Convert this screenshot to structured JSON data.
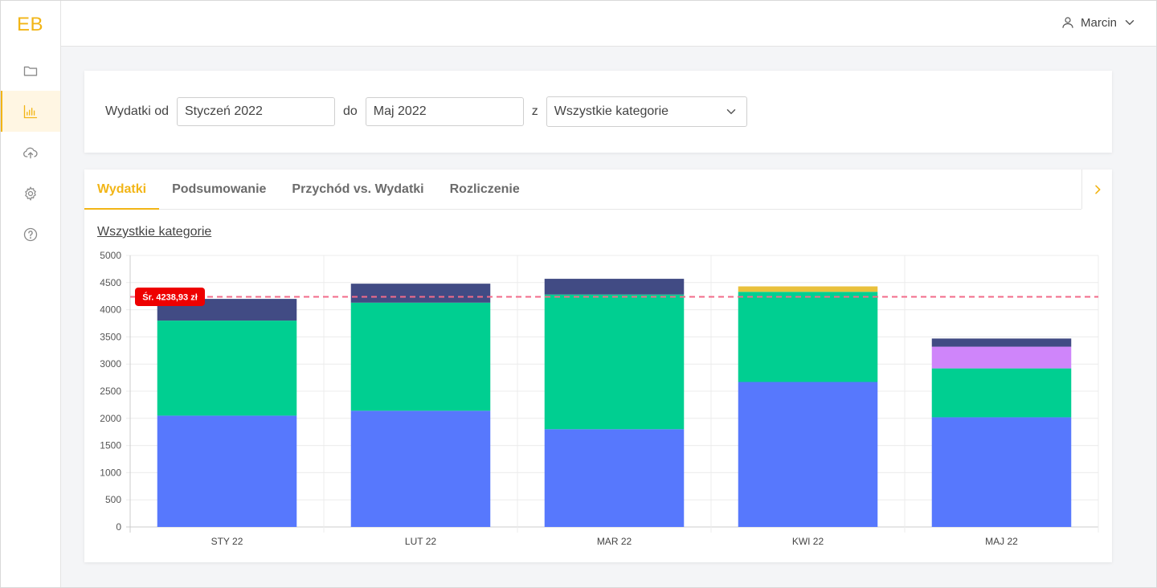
{
  "app": {
    "logo": "EB"
  },
  "sidebar": {
    "items": [
      {
        "name": "folder",
        "icon": "folder-icon",
        "active": false
      },
      {
        "name": "charts",
        "icon": "bar-chart-icon",
        "active": true
      },
      {
        "name": "upload",
        "icon": "cloud-upload-icon",
        "active": false
      },
      {
        "name": "settings",
        "icon": "gear-icon",
        "active": false
      },
      {
        "name": "help",
        "icon": "help-circle-icon",
        "active": false
      }
    ]
  },
  "header": {
    "user_name": "Marcin",
    "user_icon": "user-icon",
    "chevron_icon": "chevron-down-icon"
  },
  "filters": {
    "label_from": "Wydatki od",
    "from_value": "Styczeń 2022",
    "label_to": "do",
    "to_value": "Maj 2022",
    "label_with": "z",
    "category_value": "Wszystkie kategorie"
  },
  "tabs": [
    {
      "label": "Wydatki",
      "active": true
    },
    {
      "label": "Podsumowanie",
      "active": false
    },
    {
      "label": "Przychód vs. Wydatki",
      "active": false
    },
    {
      "label": "Rozliczenie",
      "active": false
    }
  ],
  "chart_subtitle": "Wszystkie kategorie",
  "colors": {
    "accent": "#f2b516",
    "blue": "#5778fd",
    "green": "#00cf91",
    "navy": "#414b84",
    "violet": "#cf85fa",
    "yellow": "#e9c13c",
    "average_line": "#f26b8a",
    "average_badge": "#ee0000"
  },
  "chart_data": {
    "type": "bar",
    "stacked": true,
    "categories": [
      "STY 22",
      "LUT 22",
      "MAR 22",
      "KWI 22",
      "MAJ 22"
    ],
    "series": [
      {
        "color": "#5778fd",
        "values": [
          2050,
          2140,
          1800,
          2670,
          2020
        ]
      },
      {
        "color": "#00cf91",
        "values": [
          1750,
          1990,
          2480,
          1660,
          900
        ]
      },
      {
        "color": "#cf85fa",
        "values": [
          0,
          0,
          0,
          0,
          400
        ]
      },
      {
        "color": "#e9c13c",
        "values": [
          0,
          0,
          0,
          100,
          0
        ]
      },
      {
        "color": "#414b84",
        "values": [
          400,
          350,
          290,
          0,
          150
        ]
      }
    ],
    "yticks": [
      0,
      500,
      1000,
      1500,
      2000,
      2500,
      3000,
      3500,
      4000,
      4500,
      5000
    ],
    "ylim": [
      0,
      5000
    ],
    "grid": true,
    "average": {
      "value": 4238.93,
      "label": "Śr. 4238,93 zł"
    }
  }
}
